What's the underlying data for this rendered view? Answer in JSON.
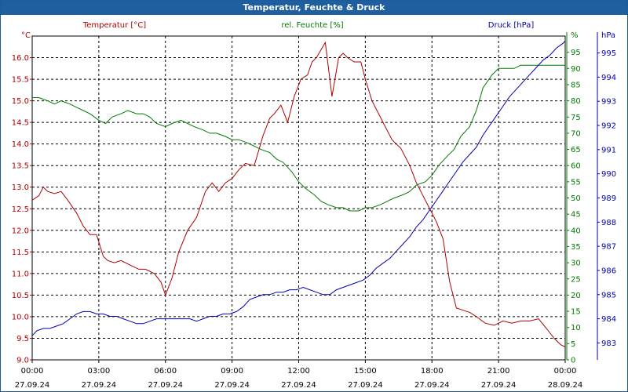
{
  "window": {
    "title": "Temperatur, Feuchte & Druck"
  },
  "chart_data": {
    "type": "line",
    "title": "Temperatur, Feuchte & Druck",
    "x_ticks": [
      {
        "time": "00:00",
        "date": "27.09.24"
      },
      {
        "time": "03:00",
        "date": "27.09.24"
      },
      {
        "time": "06:00",
        "date": "27.09.24"
      },
      {
        "time": "09:00",
        "date": "27.09.24"
      },
      {
        "time": "12:00",
        "date": "27.09.24"
      },
      {
        "time": "15:00",
        "date": "27.09.24"
      },
      {
        "time": "18:00",
        "date": "27.09.24"
      },
      {
        "time": "21:00",
        "date": "27.09.24"
      },
      {
        "time": "00:00",
        "date": "28.09.24"
      }
    ],
    "x_range_hours": [
      0,
      24
    ],
    "grid": true,
    "axes": {
      "temperature": {
        "label": "Temperatur [°C]",
        "unit": "°C",
        "range": [
          9.0,
          16.5
        ],
        "ticks": [
          "9.0",
          "9.5",
          "10.0",
          "10.5",
          "11.0",
          "11.5",
          "12.0",
          "12.5",
          "13.0",
          "13.5",
          "14.0",
          "14.5",
          "15.0",
          "15.5",
          "16.0"
        ],
        "color": "#b00000"
      },
      "humidity": {
        "label": "rel. Feuchte [%]",
        "unit": "%",
        "range": [
          0,
          100
        ],
        "ticks": [
          "0",
          "5",
          "10",
          "15",
          "20",
          "25",
          "30",
          "35",
          "40",
          "45",
          "50",
          "55",
          "60",
          "65",
          "70",
          "75",
          "80",
          "85",
          "90",
          "95"
        ],
        "color": "#007a00"
      },
      "pressure": {
        "label": "Druck [hPa]",
        "unit": "hPa",
        "range": [
          982.3,
          995.7
        ],
        "ticks": [
          "983",
          "984",
          "985",
          "986",
          "987",
          "988",
          "989",
          "990",
          "991",
          "992",
          "993",
          "994",
          "995"
        ],
        "color": "#0000b0"
      }
    },
    "series": [
      {
        "name": "Temperatur [°C]",
        "axis": "temperature",
        "color": "#b00000",
        "x": [
          0,
          0.3,
          0.5,
          0.7,
          1.0,
          1.3,
          1.6,
          2.0,
          2.3,
          2.6,
          2.9,
          3.2,
          3.4,
          3.7,
          4.0,
          4.4,
          4.8,
          5.1,
          5.5,
          5.8,
          6.0,
          6.3,
          6.6,
          7.0,
          7.4,
          7.8,
          8.1,
          8.4,
          8.7,
          9.0,
          9.3,
          9.6,
          10.0,
          10.4,
          10.7,
          10.9,
          11.2,
          11.5,
          11.8,
          12.1,
          12.4,
          12.6,
          12.8,
          13.2,
          13.5,
          13.8,
          14.0,
          14.2,
          14.5,
          14.8,
          15.0,
          15.3,
          15.5,
          15.8,
          16.2,
          16.6,
          17.0,
          17.3,
          17.6,
          17.9,
          18.2,
          18.5,
          18.8,
          19.1,
          19.4,
          19.7,
          20.0,
          20.4,
          20.8,
          21.2,
          21.6,
          22.0,
          22.4,
          22.8,
          23.2,
          23.5,
          23.8,
          24.0
        ],
        "values": [
          12.7,
          12.8,
          13.0,
          12.9,
          12.85,
          12.9,
          12.7,
          12.4,
          12.1,
          11.9,
          11.9,
          11.4,
          11.3,
          11.25,
          11.3,
          11.2,
          11.1,
          11.1,
          11.0,
          10.8,
          10.5,
          10.9,
          11.5,
          12.0,
          12.3,
          12.9,
          13.1,
          12.9,
          13.1,
          13.2,
          13.4,
          13.55,
          13.5,
          14.2,
          14.6,
          14.7,
          14.9,
          14.5,
          15.1,
          15.5,
          15.6,
          15.9,
          16.0,
          16.35,
          15.1,
          16.0,
          16.1,
          16.0,
          15.9,
          15.9,
          15.5,
          15.0,
          14.8,
          14.5,
          14.1,
          13.9,
          13.5,
          13.1,
          12.8,
          12.5,
          12.2,
          11.8,
          10.8,
          10.2,
          10.15,
          10.1,
          10.0,
          9.85,
          9.8,
          9.9,
          9.85,
          9.9,
          9.9,
          9.95,
          9.7,
          9.5,
          9.35,
          9.3
        ]
      },
      {
        "name": "rel. Feuchte [%]",
        "axis": "humidity",
        "color": "#007a00",
        "x": [
          0,
          0.3,
          0.7,
          1.0,
          1.3,
          1.7,
          2.0,
          2.3,
          2.6,
          3.0,
          3.3,
          3.6,
          4.0,
          4.3,
          4.7,
          5.0,
          5.3,
          5.6,
          6.0,
          6.3,
          6.7,
          7.0,
          7.3,
          7.7,
          8.0,
          8.3,
          8.7,
          9.0,
          9.3,
          9.7,
          10.0,
          10.3,
          10.7,
          11.0,
          11.3,
          11.7,
          12.0,
          12.3,
          12.7,
          13.0,
          13.3,
          13.7,
          14.0,
          14.3,
          14.7,
          15.0,
          15.3,
          15.7,
          16.0,
          16.3,
          16.7,
          17.0,
          17.3,
          17.7,
          18.0,
          18.3,
          18.7,
          19.0,
          19.3,
          19.7,
          20.0,
          20.3,
          20.7,
          21.0,
          21.3,
          21.7,
          22.0,
          22.3,
          22.7,
          23.0,
          23.3,
          23.7,
          24.0
        ],
        "values": [
          81,
          81,
          80,
          79,
          80,
          79,
          78,
          77,
          76,
          74,
          73,
          75,
          76,
          77,
          76,
          76,
          75,
          73,
          72,
          73,
          74,
          73,
          72,
          71,
          70,
          70,
          69,
          68,
          68,
          67,
          66,
          65,
          64,
          62,
          61,
          58,
          55,
          53,
          51,
          49,
          48,
          47,
          47,
          46,
          46,
          47,
          47,
          48,
          49,
          50,
          51,
          52,
          54,
          55,
          57,
          60,
          63,
          65,
          69,
          72,
          77,
          84,
          88,
          90,
          90,
          90,
          91,
          91,
          91,
          91,
          91,
          91,
          91
        ]
      },
      {
        "name": "Druck [hPa]",
        "axis": "pressure",
        "color": "#0000b0",
        "x": [
          0,
          0.2,
          0.5,
          0.8,
          1.1,
          1.4,
          1.7,
          2.0,
          2.3,
          2.6,
          2.9,
          3.2,
          3.5,
          3.8,
          4.1,
          4.4,
          4.7,
          5.0,
          5.3,
          5.6,
          5.9,
          6.2,
          6.5,
          6.8,
          7.1,
          7.4,
          7.7,
          8.0,
          8.3,
          8.6,
          8.9,
          9.2,
          9.5,
          9.8,
          10.1,
          10.4,
          10.7,
          11.0,
          11.3,
          11.6,
          11.9,
          12.2,
          12.5,
          12.8,
          13.1,
          13.4,
          13.7,
          14.0,
          14.3,
          14.6,
          14.9,
          15.2,
          15.5,
          15.8,
          16.1,
          16.4,
          16.7,
          17.0,
          17.3,
          17.6,
          17.9,
          18.2,
          18.5,
          18.8,
          19.1,
          19.4,
          19.7,
          20.0,
          20.3,
          20.6,
          20.9,
          21.2,
          21.5,
          21.8,
          22.1,
          22.4,
          22.7,
          23.0,
          23.3,
          23.6,
          23.9,
          24.0
        ],
        "values": [
          983.3,
          983.5,
          983.6,
          983.6,
          983.7,
          983.8,
          984.0,
          984.2,
          984.3,
          984.3,
          984.2,
          984.2,
          984.1,
          984.1,
          984.0,
          983.9,
          983.8,
          983.8,
          983.9,
          984.0,
          984.0,
          984.0,
          984.0,
          984.0,
          984.0,
          983.9,
          984.0,
          984.1,
          984.1,
          984.2,
          984.2,
          984.3,
          984.5,
          984.8,
          984.9,
          985.0,
          985.0,
          985.1,
          985.1,
          985.2,
          985.2,
          985.3,
          985.2,
          985.1,
          985.0,
          985.0,
          985.2,
          985.3,
          985.4,
          985.5,
          985.6,
          985.8,
          986.1,
          986.3,
          986.5,
          986.8,
          987.1,
          987.4,
          987.8,
          988.1,
          988.5,
          988.9,
          989.3,
          989.7,
          990.1,
          990.5,
          990.8,
          991.1,
          991.6,
          992.0,
          992.4,
          992.8,
          993.2,
          993.5,
          993.8,
          994.1,
          994.4,
          994.7,
          994.9,
          995.2,
          995.4,
          995.5
        ]
      }
    ]
  }
}
